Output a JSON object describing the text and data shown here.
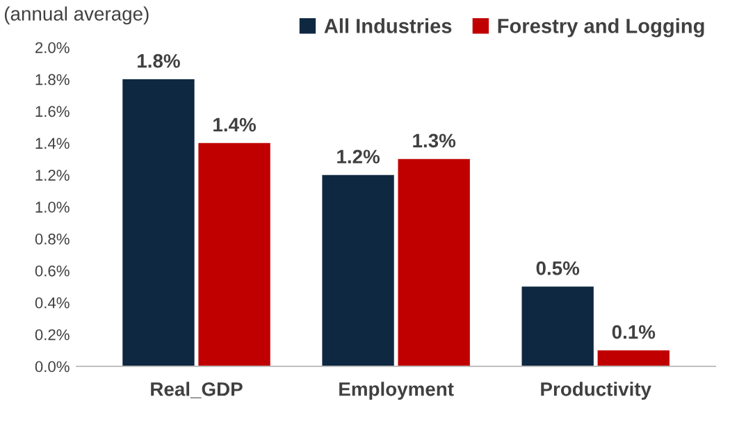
{
  "chart_data": {
    "type": "bar",
    "categories": [
      "Real_GDP",
      "Employment",
      "Productivity"
    ],
    "series": [
      {
        "name": "All Industries",
        "color": "#0f2841",
        "values": [
          1.8,
          1.2,
          0.5
        ],
        "value_labels": [
          "1.8%",
          "1.2%",
          "0.5%"
        ]
      },
      {
        "name": "Forestry and Logging",
        "color": "#c00000",
        "values": [
          1.4,
          1.3,
          0.1
        ],
        "value_labels": [
          "1.4%",
          "1.3%",
          "0.1%"
        ]
      }
    ],
    "ylim": [
      0,
      2.0
    ],
    "yticks": [
      {
        "value": 0,
        "label": "0.0%"
      },
      {
        "value": 0.2,
        "label": "0.2%"
      },
      {
        "value": 0.4,
        "label": "0.4%"
      },
      {
        "value": 0.6,
        "label": "0.6%"
      },
      {
        "value": 0.8,
        "label": "0.8%"
      },
      {
        "value": 1.0,
        "label": "1.0%"
      },
      {
        "value": 1.2,
        "label": "1.2%"
      },
      {
        "value": 1.4,
        "label": "1.4%"
      },
      {
        "value": 1.6,
        "label": "1.6%"
      },
      {
        "value": 1.8,
        "label": "1.8%"
      },
      {
        "value": 2.0,
        "label": "2.0%"
      }
    ],
    "annotations": [
      "(annual average)"
    ],
    "legend": "top right",
    "grid": false
  }
}
